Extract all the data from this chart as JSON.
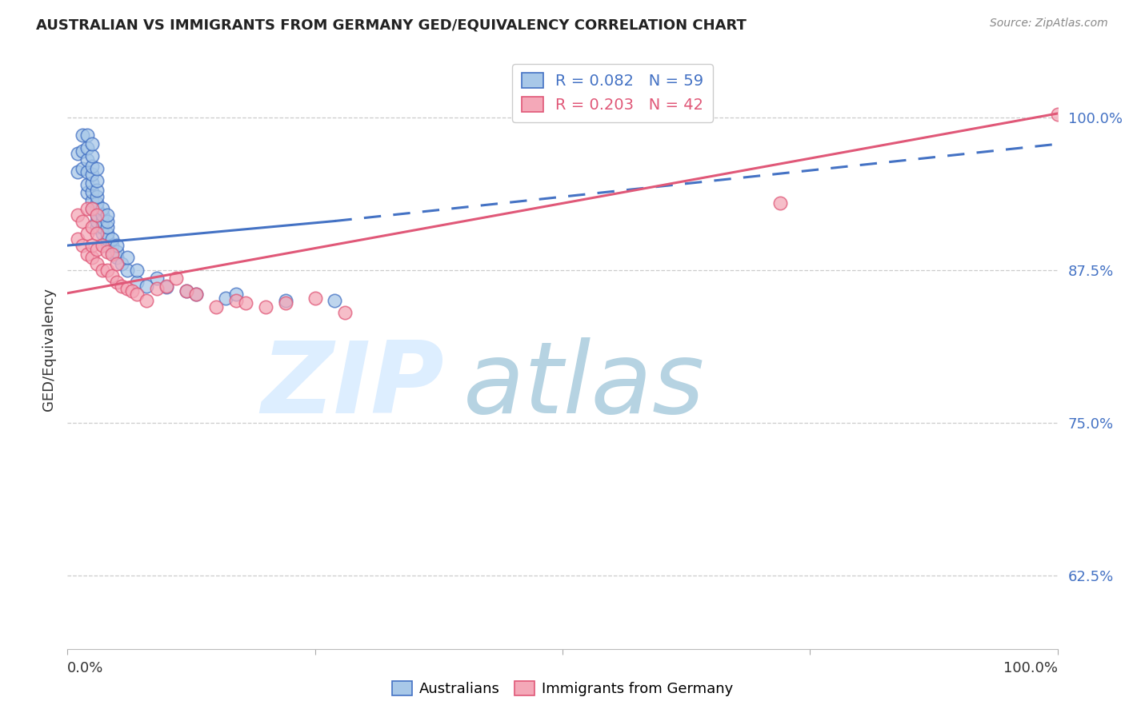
{
  "title": "AUSTRALIAN VS IMMIGRANTS FROM GERMANY GED/EQUIVALENCY CORRELATION CHART",
  "source": "Source: ZipAtlas.com",
  "ylabel": "GED/Equivalency",
  "ytick_labels": [
    "62.5%",
    "75.0%",
    "87.5%",
    "100.0%"
  ],
  "ytick_values": [
    0.625,
    0.75,
    0.875,
    1.0
  ],
  "xlim": [
    0.0,
    1.0
  ],
  "ylim": [
    0.565,
    1.055
  ],
  "legend_blue_r": "R = 0.082",
  "legend_blue_n": "N = 59",
  "legend_pink_r": "R = 0.203",
  "legend_pink_n": "N = 42",
  "blue_color": "#a8c8e8",
  "pink_color": "#f4a8b8",
  "blue_line_color": "#4472c4",
  "pink_line_color": "#e05878",
  "blue_trend_start": 0.0,
  "blue_trend_solid_end": 0.27,
  "blue_trend_dash_end": 1.0,
  "blue_trend_y0": 0.895,
  "blue_trend_y_solid_end": 0.915,
  "blue_trend_y_dash_end": 0.978,
  "pink_trend_start": 0.0,
  "pink_trend_end": 1.0,
  "pink_trend_y0": 0.856,
  "pink_trend_y1": 1.003,
  "australians_x": [
    0.01,
    0.01,
    0.015,
    0.015,
    0.015,
    0.02,
    0.02,
    0.02,
    0.02,
    0.02,
    0.02,
    0.025,
    0.025,
    0.025,
    0.025,
    0.025,
    0.025,
    0.025,
    0.025,
    0.03,
    0.03,
    0.03,
    0.03,
    0.03,
    0.03,
    0.03,
    0.03,
    0.03,
    0.035,
    0.035,
    0.035,
    0.035,
    0.035,
    0.04,
    0.04,
    0.04,
    0.04,
    0.04,
    0.04,
    0.045,
    0.045,
    0.045,
    0.05,
    0.05,
    0.05,
    0.055,
    0.06,
    0.06,
    0.07,
    0.07,
    0.08,
    0.09,
    0.1,
    0.12,
    0.13,
    0.16,
    0.17,
    0.22,
    0.27
  ],
  "australians_y": [
    0.955,
    0.97,
    0.958,
    0.972,
    0.985,
    0.938,
    0.945,
    0.955,
    0.965,
    0.975,
    0.985,
    0.925,
    0.932,
    0.939,
    0.946,
    0.953,
    0.96,
    0.968,
    0.978,
    0.91,
    0.915,
    0.92,
    0.925,
    0.93,
    0.935,
    0.94,
    0.948,
    0.958,
    0.905,
    0.91,
    0.915,
    0.92,
    0.925,
    0.895,
    0.9,
    0.905,
    0.91,
    0.915,
    0.92,
    0.89,
    0.895,
    0.9,
    0.885,
    0.89,
    0.895,
    0.88,
    0.875,
    0.885,
    0.865,
    0.875,
    0.862,
    0.868,
    0.861,
    0.858,
    0.855,
    0.852,
    0.855,
    0.85,
    0.85
  ],
  "germany_x": [
    0.01,
    0.01,
    0.015,
    0.015,
    0.02,
    0.02,
    0.02,
    0.025,
    0.025,
    0.025,
    0.025,
    0.03,
    0.03,
    0.03,
    0.03,
    0.035,
    0.035,
    0.04,
    0.04,
    0.045,
    0.045,
    0.05,
    0.05,
    0.055,
    0.06,
    0.065,
    0.07,
    0.08,
    0.09,
    0.1,
    0.11,
    0.12,
    0.13,
    0.15,
    0.17,
    0.18,
    0.2,
    0.22,
    0.25,
    0.28,
    0.72,
    1.0
  ],
  "germany_y": [
    0.9,
    0.92,
    0.895,
    0.915,
    0.888,
    0.905,
    0.925,
    0.885,
    0.895,
    0.91,
    0.925,
    0.88,
    0.892,
    0.905,
    0.92,
    0.875,
    0.895,
    0.875,
    0.89,
    0.87,
    0.888,
    0.865,
    0.88,
    0.862,
    0.86,
    0.858,
    0.855,
    0.85,
    0.86,
    0.862,
    0.868,
    0.858,
    0.855,
    0.845,
    0.85,
    0.848,
    0.845,
    0.848,
    0.852,
    0.84,
    0.93,
    1.002
  ]
}
